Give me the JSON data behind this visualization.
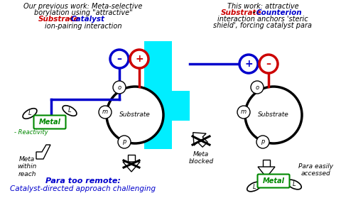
{
  "bg_color": "#ffffff",
  "cyan": "#00EEFF",
  "blue": "#0000CC",
  "red": "#CC0000",
  "green": "#008800",
  "left_t1": "Our previous work: Meta-selective",
  "left_t2": "borylation using \"attractive\"",
  "left_t3a": "Substrate",
  "left_t3b": " - ",
  "left_t3c": "Catalyst",
  "left_t4": "ion-pairing interaction",
  "right_t1": "This work: attractive",
  "right_t2a": "Substrate",
  "right_t2b": " - ",
  "right_t2c": "Counterion",
  "right_t3": "interaction anchors 'steric",
  "right_t4": "shield', forcing catalyst para",
  "bl1": "Para too remote:",
  "bl2": "Catalyst-directed approach challenging",
  "meta_within": "Meta\nwithin\nreach",
  "meta_blocked": "Meta\nblocked",
  "para_accessed": "Para easily\naccessed"
}
